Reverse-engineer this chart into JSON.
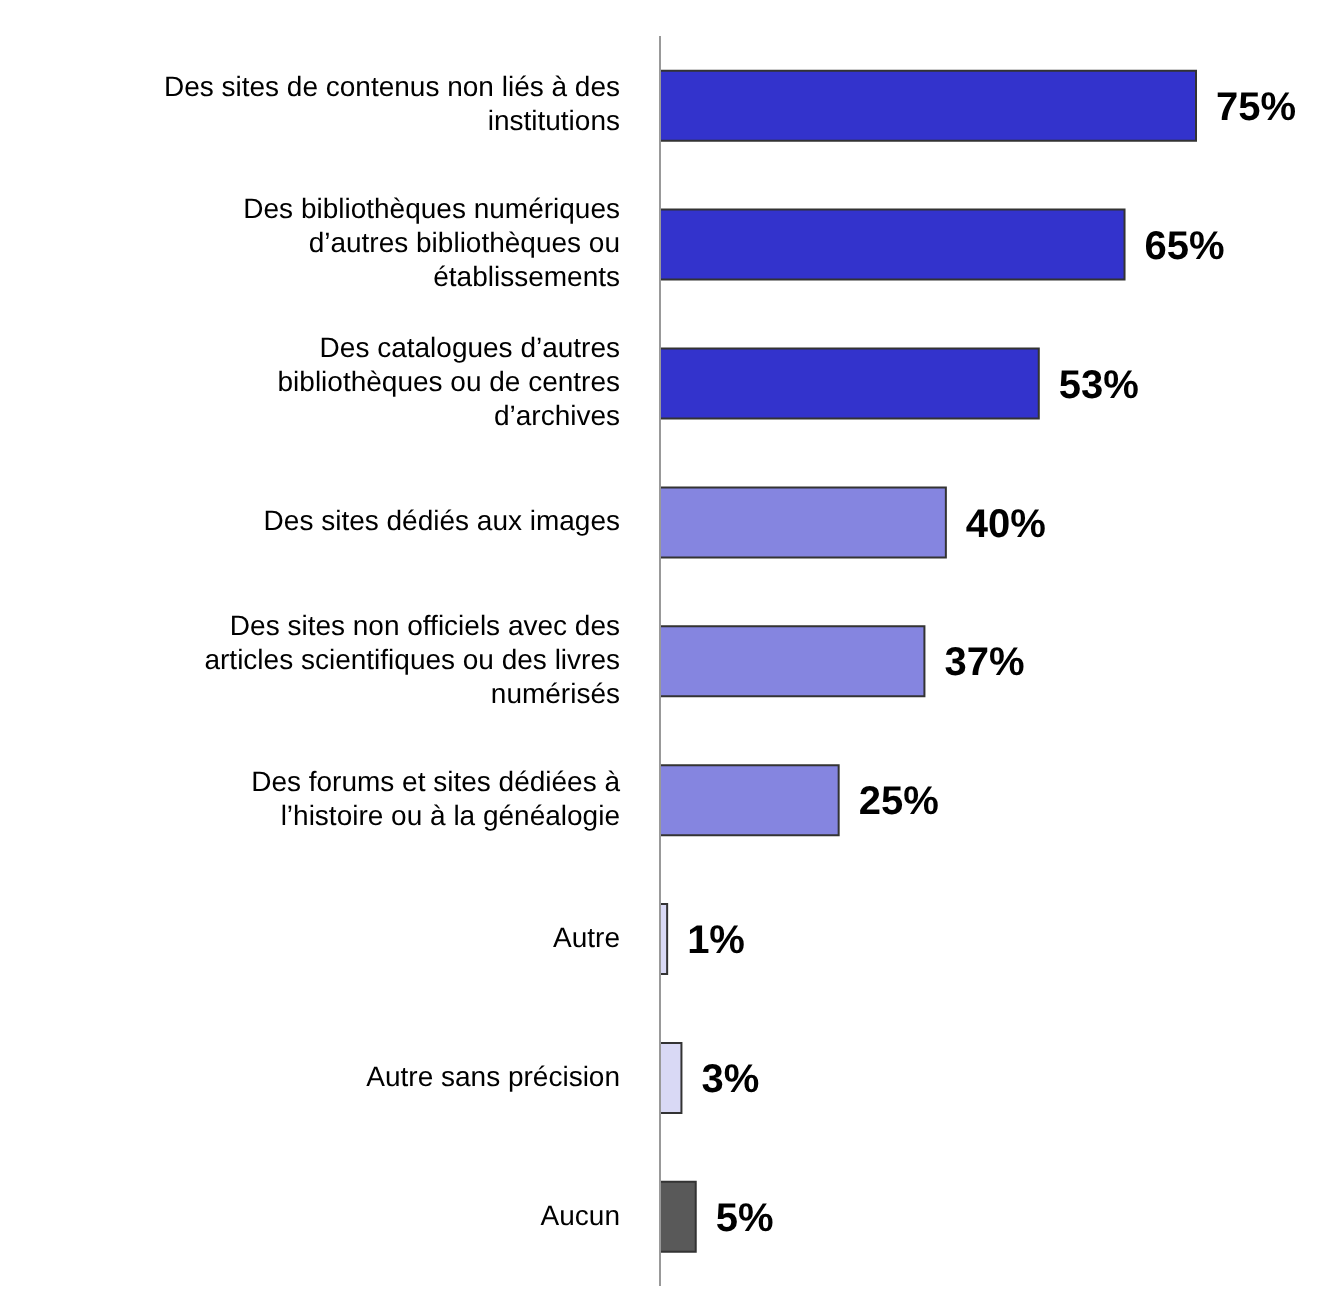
{
  "chart_data": {
    "type": "bar",
    "orientation": "horizontal",
    "value_labels": [
      "75%",
      "65%",
      "53%",
      "40%",
      "37%",
      "25%",
      "1%",
      "3%",
      "5%"
    ],
    "categories": [
      "Des sites de contenus non liés à des institutions",
      "Des bibliothèques numériques d’autres bibliothèques ou établissements",
      "Des catalogues d’autres bibliothèques ou de centres d’archives",
      "Des sites dédiés aux images",
      "Des sites non officiels avec des articles scientifiques ou des livres numérisés",
      "Des forums et sites dédiées à l’histoire ou à la généalogie",
      "Autre",
      "Autre sans précision",
      "Aucun"
    ],
    "values": [
      75,
      65,
      53,
      40,
      37,
      25,
      1,
      3,
      5
    ],
    "colors": [
      "#3333cc",
      "#3333cc",
      "#3333cc",
      "#8585e0",
      "#8585e0",
      "#8585e0",
      "#d9d9f5",
      "#d9d9f5",
      "#595959"
    ],
    "grid": false,
    "legend": false
  }
}
